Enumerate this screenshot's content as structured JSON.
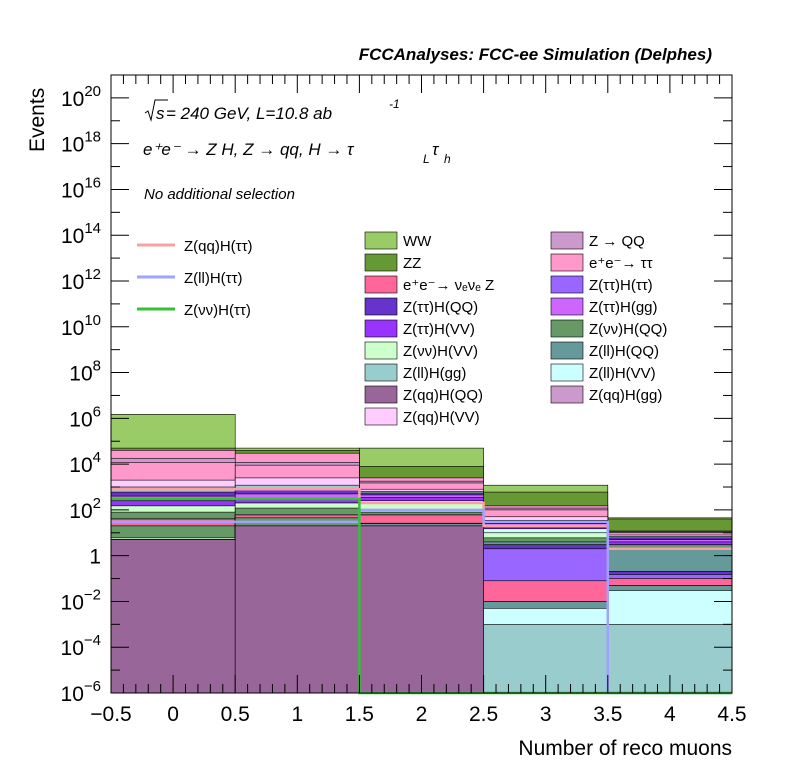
{
  "chart_data": {
    "type": "bar",
    "stacked": true,
    "log_y": true,
    "title": "FCCAnalyses: FCC-ee Simulation (Delphes)",
    "xlabel": "Number of reco muons",
    "ylabel": "Events",
    "xlim": [
      -0.5,
      4.5
    ],
    "ylim": [
      1e-06,
      1e+21
    ],
    "bin_edges": [
      -0.5,
      0.5,
      1.5,
      2.5,
      3.5,
      4.5
    ],
    "x_ticks": [
      "−0.5",
      "0",
      "0.5",
      "1",
      "1.5",
      "2",
      "2.5",
      "3",
      "3.5",
      "4",
      "4.5"
    ],
    "y_tick_exponents": [
      "−6",
      "−4",
      "−2",
      "",
      "",
      "4",
      "6",
      "8",
      "10",
      "12",
      "14",
      "16",
      "18",
      "20"
    ],
    "y_tick_plain": [
      "1",
      "10"
    ],
    "annotations": {
      "line1_sqrt": "s",
      "line1_rest": " = 240 GeV, L=10.8 ab",
      "line1_exp": "-1",
      "line2": "e⁺e⁻ → Z H, Z  → qq, H  → τ",
      "line2_sub1": "L",
      "line2_mid": "τ",
      "line2_sub2": "h",
      "line3": "No additional selection"
    },
    "signal_legend": [
      {
        "name": "Z(qq)H(ττ)",
        "color": "#f7a1a1"
      },
      {
        "name": "Z(ll)H(ττ)",
        "color": "#a1a1ff"
      },
      {
        "name": "Z(νν)H(ττ)",
        "color": "#36c036"
      }
    ],
    "signal_series": [
      {
        "name": "Z(qq)H(ττ)",
        "color": "#f7a1a1",
        "values": [
          800,
          800,
          200,
          20,
          2
        ]
      },
      {
        "name": "Z(ll)H(ττ)",
        "color": "#a1a1ff",
        "values": [
          30,
          30,
          100,
          30,
          1e-06
        ]
      },
      {
        "name": "Z(νν)H(ττ)",
        "color": "#36c036",
        "values": [
          300,
          300,
          1e-06,
          1e-06,
          1e-06
        ]
      }
    ],
    "background_legend": [
      {
        "name": "WW",
        "color": "#99cc66"
      },
      {
        "name": "Z → QQ",
        "color": "#cc99cc"
      },
      {
        "name": "ZZ",
        "color": "#669933"
      },
      {
        "name": "e⁺e⁻→ ττ",
        "color": "#ff99cc"
      },
      {
        "name": "e⁺e⁻→ νₑνₑ Z",
        "color": "#ff6699"
      },
      {
        "name": "Z(ττ)H(ττ)",
        "color": "#9966ff"
      },
      {
        "name": "Z(ττ)H(QQ)",
        "color": "#6633cc"
      },
      {
        "name": "Z(ττ)H(gg)",
        "color": "#cc66ff"
      },
      {
        "name": "Z(ττ)H(VV)",
        "color": "#9933ff"
      },
      {
        "name": "Z(νν)H(QQ)",
        "color": "#669966"
      },
      {
        "name": "Z(νν)H(VV)",
        "color": "#ccffcc"
      },
      {
        "name": "Z(ll)H(QQ)",
        "color": "#669999"
      },
      {
        "name": "Z(ll)H(gg)",
        "color": "#99cccc"
      },
      {
        "name": "Z(ll)H(VV)",
        "color": "#ccffff"
      },
      {
        "name": "Z(qq)H(QQ)",
        "color": "#996699"
      },
      {
        "name": "Z(qq)H(gg)",
        "color": "#cc99cc"
      },
      {
        "name": "Z(qq)H(VV)",
        "color": "#ffccff"
      }
    ],
    "stack_totals": [
      {
        "name": "Z(qq)H(QQ)",
        "color": "#996699",
        "totals": [
          5,
          20,
          20,
          1e-06,
          1e-06
        ]
      },
      {
        "name": "Z(qq)H(gg)",
        "color": "#cc99cc",
        "totals": [
          5,
          20,
          20,
          1e-06,
          1e-06
        ]
      },
      {
        "name": "Z(qq)H(VV)",
        "color": "#ffccff",
        "totals": [
          5,
          20,
          20,
          1e-06,
          1e-06
        ]
      },
      {
        "name": "Z(ll)H(gg)",
        "color": "#99cccc",
        "totals": [
          5,
          20,
          20,
          0.001,
          0.001
        ]
      },
      {
        "name": "Z(ll)H(VV)",
        "color": "#ccffff",
        "totals": [
          5,
          20,
          20,
          0.005,
          0.03
        ]
      },
      {
        "name": "Z(ll)H(QQ)",
        "color": "#669999",
        "totals": [
          5,
          20,
          25,
          0.01,
          0.05
        ]
      },
      {
        "name": "Z(νν)H(VV)",
        "color": "#ccffcc",
        "totals": [
          6,
          20,
          25,
          0.01,
          0.05
        ]
      },
      {
        "name": "Z(νν)H(QQ)",
        "color": "#669966",
        "totals": [
          20,
          45,
          26,
          0.01,
          0.05
        ]
      },
      {
        "name": "Z(ττ)H(VV)",
        "color": "#9933ff",
        "totals": [
          20,
          45,
          26,
          0.01,
          0.05
        ]
      },
      {
        "name": "Z(ττ)H(gg)",
        "color": "#cc66ff",
        "totals": [
          20,
          45,
          26,
          0.01,
          0.05
        ]
      },
      {
        "name": "Z(ττ)H(QQ)",
        "color": "#6633cc",
        "totals": [
          20,
          45,
          26,
          0.01,
          0.05
        ]
      },
      {
        "name": "Z(ττ)H(ττ)",
        "color": "#9966ff",
        "totals": [
          20,
          45,
          26,
          0.01,
          0.05
        ]
      },
      {
        "name": "e⁺e⁻→ νₑνₑ Z",
        "color": "#ff6699",
        "totals": [
          40,
          60,
          60,
          0.08,
          0.1
        ]
      },
      {
        "name": "Z(ττ)H(ττ)",
        "color": "#9966ff",
        "totals": [
          40,
          60,
          60,
          2,
          0.15
        ]
      },
      {
        "name": "Z(ττ)H(QQ)",
        "color": "#6633cc",
        "totals": [
          40,
          60,
          60,
          3,
          0.2
        ]
      },
      {
        "name": "Z(ττ)H(gg)",
        "color": "#cc66ff",
        "totals": [
          40,
          60,
          60,
          3,
          0.2
        ]
      },
      {
        "name": "Z(ττ)H(VV)",
        "color": "#9933ff",
        "totals": [
          40,
          60,
          60,
          3,
          0.2
        ]
      },
      {
        "name": "Z(ll)H(QQ)",
        "color": "#669999",
        "totals": [
          40,
          60,
          60,
          4,
          2
        ]
      },
      {
        "name": "Z(νν)H(QQ)",
        "color": "#669966",
        "totals": [
          80,
          120,
          80,
          6,
          3
        ]
      },
      {
        "name": "Z(νν)H(VV)",
        "color": "#ccffcc",
        "totals": [
          150,
          200,
          200,
          10,
          3
        ]
      },
      {
        "name": "Z(ll)H(VV)",
        "color": "#ccffff",
        "totals": [
          150,
          200,
          250,
          15,
          3
        ]
      },
      {
        "name": "Z(ττ)H(VV)",
        "color": "#9933ff",
        "totals": [
          250,
          300,
          350,
          20,
          4
        ]
      },
      {
        "name": "Z(ττ)H(gg)",
        "color": "#cc66ff",
        "totals": [
          400,
          500,
          450,
          25,
          5
        ]
      },
      {
        "name": "Z(ττ)H(QQ)",
        "color": "#6633cc",
        "totals": [
          600,
          800,
          550,
          30,
          6
        ]
      },
      {
        "name": "Z(ll)H(gg)",
        "color": "#99cccc",
        "totals": [
          1000,
          1200,
          650,
          35,
          7
        ]
      },
      {
        "name": "Z(qq)H(VV)",
        "color": "#ffccff",
        "totals": [
          2000,
          2500,
          800,
          50,
          8
        ]
      },
      {
        "name": "e⁺e⁻→ ττ",
        "color": "#ff99cc",
        "totals": [
          12000,
          9000,
          1500,
          100,
          10
        ]
      },
      {
        "name": "Z(qq)H(gg)",
        "color": "#cc99cc",
        "totals": [
          18000,
          12000,
          1800,
          120,
          11
        ]
      },
      {
        "name": "e⁺e⁻→ ττ",
        "color": "#ff99cc",
        "totals": [
          40000,
          30000,
          2500,
          150,
          12
        ]
      },
      {
        "name": "ZZ",
        "color": "#669933",
        "totals": [
          50000,
          40000,
          8000,
          600,
          40
        ]
      },
      {
        "name": "WW",
        "color": "#99cc66",
        "totals": [
          1500000,
          50000,
          50000,
          1200,
          45
        ]
      }
    ]
  }
}
